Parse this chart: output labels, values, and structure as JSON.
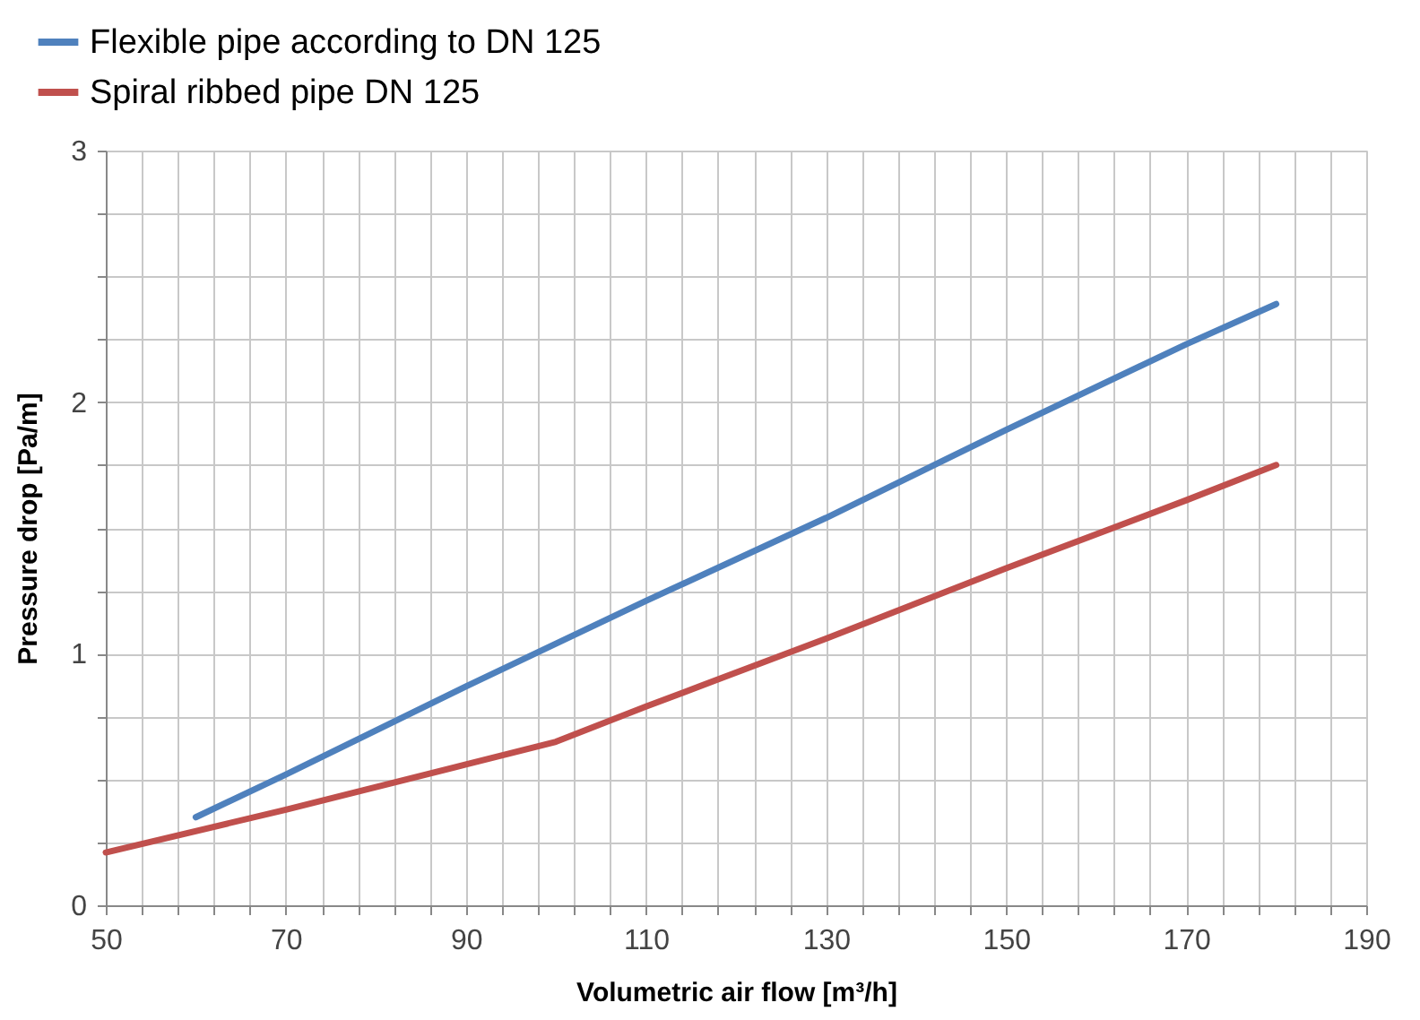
{
  "chart_data": {
    "type": "line",
    "xlabel": "Volumetric air flow [m³/h]",
    "ylabel": "Pressure drop [Pa/m]",
    "xlim": [
      50,
      190
    ],
    "xticks": [
      50,
      {
        "value": 54,
        "label": null
      },
      {
        "value": 58,
        "label": null
      },
      {
        "value": 62,
        "label": null
      },
      {
        "value": 66,
        "label": null
      },
      70,
      {
        "value": 74,
        "label": null
      },
      {
        "value": 78,
        "label": null
      },
      {
        "value": 82,
        "label": null
      },
      {
        "value": 86,
        "label": null
      },
      90,
      {
        "value": 94,
        "label": null
      },
      {
        "value": 98,
        "label": null
      },
      {
        "value": 102,
        "label": null
      },
      {
        "value": 106,
        "label": null
      },
      110,
      {
        "value": 114,
        "label": null
      },
      {
        "value": 118,
        "label": null
      },
      {
        "value": 122,
        "label": null
      },
      {
        "value": 126,
        "label": null
      },
      130,
      {
        "value": 134,
        "label": null
      },
      {
        "value": 138,
        "label": null
      },
      {
        "value": 142,
        "label": null
      },
      {
        "value": 146,
        "label": null
      },
      150,
      {
        "value": 154,
        "label": null
      },
      {
        "value": 158,
        "label": null
      },
      {
        "value": 162,
        "label": null
      },
      {
        "value": 166,
        "label": null
      },
      170,
      {
        "value": 174,
        "label": null
      },
      {
        "value": 178,
        "label": null
      },
      {
        "value": 182,
        "label": null
      },
      {
        "value": 186,
        "label": null
      },
      190
    ],
    "ylim": [
      0,
      3
    ],
    "yticks": [
      0,
      {
        "value": 0.25,
        "label": null
      },
      {
        "value": 0.5,
        "label": null
      },
      {
        "value": 0.75,
        "label": null
      },
      1,
      {
        "value": 1.25,
        "label": null
      },
      {
        "value": 1.5,
        "label": null
      },
      {
        "value": 1.75,
        "label": null
      },
      2,
      {
        "value": 2.25,
        "label": null
      },
      {
        "value": 2.5,
        "label": null
      },
      {
        "value": 2.75,
        "label": null
      },
      3
    ],
    "grid": true,
    "legend": "top left",
    "marker": "none",
    "line_style": "solid",
    "series": [
      {
        "name": "Flexible pipe according to DN 125",
        "color": "#4f81bd",
        "x": [
          60,
          70,
          90,
          110,
          130,
          150,
          170,
          180
        ],
        "values": [
          0.35,
          0.52,
          0.87,
          1.21,
          1.54,
          1.89,
          2.23,
          2.39
        ]
      },
      {
        "name": "Spiral ribbed pipe DN 125",
        "color": "#c0504d",
        "x": [
          50,
          70,
          90,
          100,
          110,
          130,
          150,
          170,
          180
        ],
        "values": [
          0.21,
          0.38,
          0.56,
          0.65,
          0.79,
          1.06,
          1.34,
          1.61,
          1.75
        ]
      }
    ]
  }
}
